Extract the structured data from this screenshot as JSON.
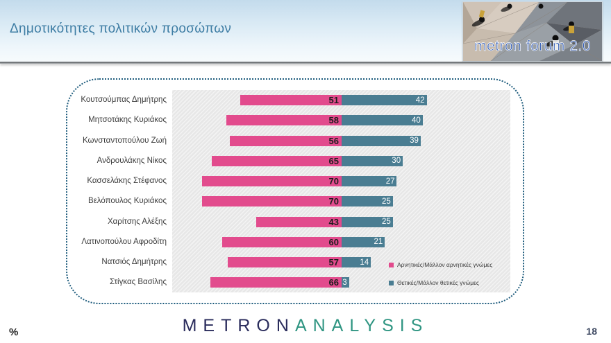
{
  "header": {
    "title": "Δημοτικότητες πολιτικών προσώπων"
  },
  "logo_badge": {
    "text": "metron forum 2.0"
  },
  "chart_data": {
    "type": "bar",
    "orientation": "horizontal-diverging",
    "categories": [
      "Κουτσούμπας Δημήτρης",
      "Μητσοτάκης Κυριάκος",
      "Κωνσταντοπούλου Ζωή",
      "Ανδρουλάκης Νίκος",
      "Κασσελάκης Στέφανος",
      "Βελόπουλος Κυριάκος",
      "Χαρίτσης Αλέξης",
      "Λατινοπούλου Αφροδίτη",
      "Νατσιός Δημήτρης",
      "Στίγκας Βασίλης"
    ],
    "series": [
      {
        "name": "Αρνητικές/Μάλλον αρνητικές γνώμες",
        "color": "#e24b8d",
        "values": [
          51,
          58,
          56,
          65,
          70,
          70,
          43,
          60,
          57,
          66
        ]
      },
      {
        "name": "Θετικές/Μάλλον θετικές γνώμες",
        "color": "#4a7d92",
        "values": [
          42,
          40,
          39,
          30,
          27,
          25,
          25,
          21,
          14,
          3
        ]
      }
    ],
    "value_labels": "inside-end",
    "legend_position": "inside-bottom-right",
    "xlim": [
      0,
      100
    ],
    "grid": false,
    "plot_background": "diagonal-hatch"
  },
  "footer": {
    "brand_part1": "METRON",
    "brand_part2": "ANALYSIS",
    "unit_label": "%",
    "page_number": "18"
  }
}
